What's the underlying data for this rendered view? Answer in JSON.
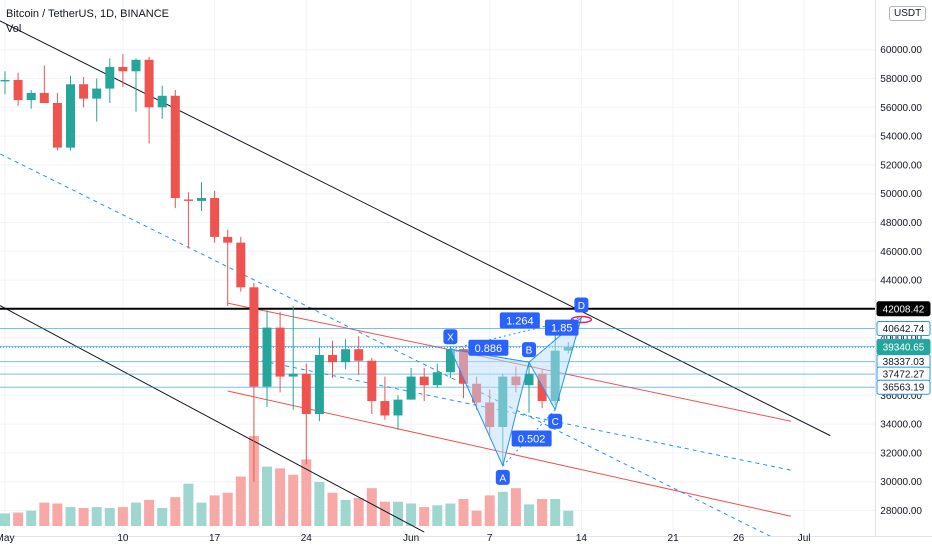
{
  "header": {
    "symbol_line": "Bitcoin / TetherUS, 1D, BINANCE",
    "volume_label": "Vol",
    "currency_badge": "USDT"
  },
  "colors": {
    "up": "#26a69a",
    "down": "#ef5350",
    "up_vol": "#9fd6cf",
    "down_vol": "#f7a9a7",
    "channel_black": "#131722",
    "channel_red": "#ef5350",
    "dashed_blue": "#2196f3",
    "level_line": "#2196f3",
    "pattern_fill": "#bbdefb",
    "label_bg": "#2962ff"
  },
  "chart_data": {
    "type": "candlestick",
    "title": "Bitcoin / TetherUS, 1D, BINANCE",
    "price_axis": {
      "ticks": [
        "28000.00",
        "30000.00",
        "32000.00",
        "34000.00",
        "36000.00",
        "38000.00",
        "40000.00",
        "42000.00",
        "44000.00",
        "46000.00",
        "48000.00",
        "50000.00",
        "52000.00",
        "54000.00",
        "56000.00",
        "58000.00",
        "60000.00"
      ],
      "top_partial_tick": "6"
    },
    "time_axis": {
      "ticks": [
        {
          "label": "May",
          "day": 0
        },
        {
          "label": "10",
          "day": 9
        },
        {
          "label": "17",
          "day": 16
        },
        {
          "label": "24",
          "day": 23
        },
        {
          "label": "Jun",
          "day": 31
        },
        {
          "label": "7",
          "day": 37
        },
        {
          "label": "14",
          "day": 44
        },
        {
          "label": "21",
          "day": 51
        },
        {
          "label": "26",
          "day": 56
        },
        {
          "label": "Jul",
          "day": 61
        }
      ]
    },
    "candles": [
      {
        "day": 0,
        "o": 57800,
        "h": 58500,
        "l": 56900,
        "c": 57900
      },
      {
        "day": 1,
        "o": 57900,
        "h": 58400,
        "l": 56100,
        "c": 56500
      },
      {
        "day": 2,
        "o": 56500,
        "h": 57200,
        "l": 55900,
        "c": 57000
      },
      {
        "day": 3,
        "o": 57000,
        "h": 58900,
        "l": 56300,
        "c": 56300
      },
      {
        "day": 4,
        "o": 56300,
        "h": 57000,
        "l": 53000,
        "c": 53200
      },
      {
        "day": 5,
        "o": 53200,
        "h": 58200,
        "l": 53000,
        "c": 57600
      },
      {
        "day": 6,
        "o": 57600,
        "h": 58100,
        "l": 56000,
        "c": 56600
      },
      {
        "day": 7,
        "o": 56600,
        "h": 58000,
        "l": 55000,
        "c": 57300
      },
      {
        "day": 8,
        "o": 57300,
        "h": 59400,
        "l": 56300,
        "c": 58800
      },
      {
        "day": 9,
        "o": 58800,
        "h": 59700,
        "l": 57400,
        "c": 58500
      },
      {
        "day": 10,
        "o": 58500,
        "h": 59400,
        "l": 55700,
        "c": 59300
      },
      {
        "day": 11,
        "o": 59300,
        "h": 59500,
        "l": 53500,
        "c": 56000
      },
      {
        "day": 12,
        "o": 56000,
        "h": 57500,
        "l": 55200,
        "c": 56800
      },
      {
        "day": 13,
        "o": 56800,
        "h": 57200,
        "l": 49000,
        "c": 49700
      },
      {
        "day": 14,
        "o": 49600,
        "h": 50100,
        "l": 46200,
        "c": 49500
      },
      {
        "day": 15,
        "o": 49500,
        "h": 50800,
        "l": 48800,
        "c": 49700
      },
      {
        "day": 16,
        "o": 49700,
        "h": 50200,
        "l": 46600,
        "c": 47000
      },
      {
        "day": 17,
        "o": 47000,
        "h": 47500,
        "l": 42200,
        "c": 46600
      },
      {
        "day": 18,
        "o": 46600,
        "h": 47000,
        "l": 43200,
        "c": 43500
      },
      {
        "day": 19,
        "o": 43500,
        "h": 43800,
        "l": 30000,
        "c": 36600
      },
      {
        "day": 20,
        "o": 36600,
        "h": 41900,
        "l": 35200,
        "c": 40700
      },
      {
        "day": 21,
        "o": 40700,
        "h": 41800,
        "l": 36200,
        "c": 37300
      },
      {
        "day": 22,
        "o": 37300,
        "h": 42200,
        "l": 35000,
        "c": 37500
      },
      {
        "day": 23,
        "o": 37500,
        "h": 38200,
        "l": 31200,
        "c": 34700
      },
      {
        "day": 24,
        "o": 34700,
        "h": 40000,
        "l": 34200,
        "c": 38800
      },
      {
        "day": 25,
        "o": 38800,
        "h": 39800,
        "l": 37200,
        "c": 38300
      },
      {
        "day": 26,
        "o": 38300,
        "h": 39900,
        "l": 37800,
        "c": 39200
      },
      {
        "day": 27,
        "o": 39200,
        "h": 40100,
        "l": 37400,
        "c": 38400
      },
      {
        "day": 28,
        "o": 38400,
        "h": 38600,
        "l": 34700,
        "c": 35600
      },
      {
        "day": 29,
        "o": 35600,
        "h": 37300,
        "l": 34300,
        "c": 34600
      },
      {
        "day": 30,
        "o": 34600,
        "h": 36000,
        "l": 33600,
        "c": 35700
      },
      {
        "day": 31,
        "o": 35700,
        "h": 37900,
        "l": 35700,
        "c": 37300
      },
      {
        "day": 32,
        "o": 37300,
        "h": 37900,
        "l": 35600,
        "c": 36700
      },
      {
        "day": 33,
        "o": 36700,
        "h": 38200,
        "l": 36500,
        "c": 37600
      },
      {
        "day": 34,
        "o": 37600,
        "h": 39400,
        "l": 37200,
        "c": 39200
      },
      {
        "day": 35,
        "o": 39200,
        "h": 39300,
        "l": 35800,
        "c": 36800
      },
      {
        "day": 36,
        "o": 36800,
        "h": 37300,
        "l": 35000,
        "c": 35500
      },
      {
        "day": 37,
        "o": 35500,
        "h": 36400,
        "l": 33200,
        "c": 33800
      },
      {
        "day": 38,
        "o": 33800,
        "h": 37500,
        "l": 31100,
        "c": 37300
      },
      {
        "day": 39,
        "o": 37300,
        "h": 38000,
        "l": 36200,
        "c": 36700
      },
      {
        "day": 40,
        "o": 36700,
        "h": 38300,
        "l": 34800,
        "c": 37500
      },
      {
        "day": 41,
        "o": 37500,
        "h": 37800,
        "l": 35100,
        "c": 35600
      },
      {
        "day": 42,
        "o": 35600,
        "h": 41100,
        "l": 35300,
        "c": 39100
      },
      {
        "day": 43,
        "o": 39100,
        "h": 39700,
        "l": 38900,
        "c": 39350
      }
    ],
    "volume": [
      {
        "day": 0,
        "v": 0.14,
        "up": true
      },
      {
        "day": 1,
        "v": 0.15,
        "up": false
      },
      {
        "day": 2,
        "v": 0.17,
        "up": true
      },
      {
        "day": 3,
        "v": 0.26,
        "up": false
      },
      {
        "day": 4,
        "v": 0.25,
        "up": false
      },
      {
        "day": 5,
        "v": 0.21,
        "up": true
      },
      {
        "day": 6,
        "v": 0.2,
        "up": false
      },
      {
        "day": 7,
        "v": 0.21,
        "up": true
      },
      {
        "day": 8,
        "v": 0.2,
        "up": true
      },
      {
        "day": 9,
        "v": 0.21,
        "up": false
      },
      {
        "day": 10,
        "v": 0.26,
        "up": true
      },
      {
        "day": 11,
        "v": 0.29,
        "up": false
      },
      {
        "day": 12,
        "v": 0.2,
        "up": true
      },
      {
        "day": 13,
        "v": 0.32,
        "up": false
      },
      {
        "day": 14,
        "v": 0.47,
        "up": true
      },
      {
        "day": 15,
        "v": 0.26,
        "up": true
      },
      {
        "day": 16,
        "v": 0.34,
        "up": false
      },
      {
        "day": 17,
        "v": 0.37,
        "up": false
      },
      {
        "day": 18,
        "v": 0.55,
        "up": false
      },
      {
        "day": 19,
        "v": 1.0,
        "up": false
      },
      {
        "day": 20,
        "v": 0.66,
        "up": true
      },
      {
        "day": 21,
        "v": 0.64,
        "up": false
      },
      {
        "day": 22,
        "v": 0.57,
        "up": false
      },
      {
        "day": 23,
        "v": 0.74,
        "up": false
      },
      {
        "day": 24,
        "v": 0.49,
        "up": true
      },
      {
        "day": 25,
        "v": 0.37,
        "up": false
      },
      {
        "day": 26,
        "v": 0.29,
        "up": true
      },
      {
        "day": 27,
        "v": 0.31,
        "up": false
      },
      {
        "day": 28,
        "v": 0.42,
        "up": false
      },
      {
        "day": 29,
        "v": 0.27,
        "up": false
      },
      {
        "day": 30,
        "v": 0.27,
        "up": true
      },
      {
        "day": 31,
        "v": 0.25,
        "up": true
      },
      {
        "day": 32,
        "v": 0.21,
        "up": false
      },
      {
        "day": 33,
        "v": 0.23,
        "up": true
      },
      {
        "day": 34,
        "v": 0.25,
        "up": true
      },
      {
        "day": 35,
        "v": 0.3,
        "up": false
      },
      {
        "day": 36,
        "v": 0.17,
        "up": false
      },
      {
        "day": 37,
        "v": 0.34,
        "up": false
      },
      {
        "day": 38,
        "v": 0.38,
        "up": true
      },
      {
        "day": 39,
        "v": 0.42,
        "up": false
      },
      {
        "day": 40,
        "v": 0.24,
        "up": true
      },
      {
        "day": 41,
        "v": 0.3,
        "up": false
      },
      {
        "day": 42,
        "v": 0.3,
        "up": true
      },
      {
        "day": 43,
        "v": 0.17,
        "up": true
      }
    ],
    "horizontal_levels": [
      {
        "price": 42008.42,
        "label": "42008.42",
        "style": "black"
      },
      {
        "price": 40642.74,
        "label": "40642.74",
        "style": "blue"
      },
      {
        "price": 39394.68,
        "label": "39394.68",
        "style": "blue"
      },
      {
        "price": 39340.65,
        "label": "39340.65",
        "style": "current"
      },
      {
        "price": 38337.03,
        "label": "38337.03",
        "style": "blue"
      },
      {
        "price": 37472.27,
        "label": "37472.27",
        "style": "blue"
      },
      {
        "price": 36563.19,
        "label": "36563.19",
        "style": "blue"
      }
    ],
    "trend_lines": [
      {
        "style": "black",
        "from": {
          "day": -7,
          "price": 65000
        },
        "to": {
          "day": 63,
          "price": 33200
        }
      },
      {
        "style": "black",
        "from": {
          "day": -3,
          "price": 43500
        },
        "to": {
          "day": 32,
          "price": 26500
        }
      },
      {
        "style": "red",
        "from": {
          "day": 17,
          "price": 42400
        },
        "to": {
          "day": 60,
          "price": 34200
        }
      },
      {
        "style": "red",
        "from": {
          "day": 17,
          "price": 36300
        },
        "to": {
          "day": 60,
          "price": 27600
        }
      },
      {
        "style": "dashed",
        "from": {
          "day": -2,
          "price": 53500
        },
        "to": {
          "day": 60,
          "price": 25500
        }
      },
      {
        "style": "dashed",
        "from": {
          "day": 19,
          "price": 38500
        },
        "to": {
          "day": 60,
          "price": 30800
        }
      }
    ],
    "harmonic_pattern": {
      "points": [
        {
          "label": "X",
          "day": 34,
          "price": 39200
        },
        {
          "label": "A",
          "day": 38,
          "price": 31100
        },
        {
          "label": "B",
          "day": 40,
          "price": 38300
        },
        {
          "label": "C",
          "day": 42,
          "price": 35000
        },
        {
          "label": "D",
          "day": 44,
          "price": 41400
        }
      ],
      "ratios": [
        {
          "value": "0.886",
          "day": 36.9,
          "price": 39300
        },
        {
          "value": "1.264",
          "day": 39.3,
          "price": 41200
        },
        {
          "value": "1.85",
          "day": 42.5,
          "price": 40700
        },
        {
          "value": "0.502",
          "day": 40.2,
          "price": 33000
        }
      ]
    }
  }
}
